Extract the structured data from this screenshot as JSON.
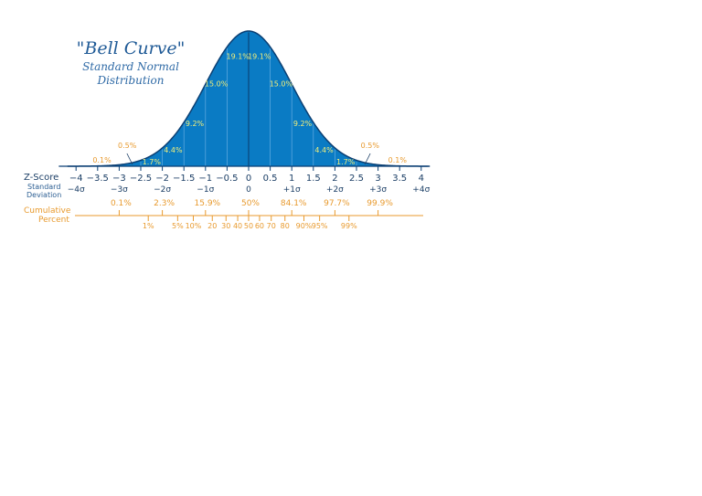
{
  "chart_data": {
    "type": "area",
    "title": "\"Bell Curve\"",
    "subtitle_line1": "Standard Normal",
    "subtitle_line2": "Distribution",
    "x_range": [
      -4.2,
      4.2
    ],
    "curve_color": "#0a7bc4",
    "curve_edge": "#0b3f73",
    "accent_orange": "#e89a2e",
    "area_label_color": "#f2ee7a",
    "zscore": {
      "label": "Z-Score",
      "ticks": [
        -4,
        -3.5,
        -3,
        -2.5,
        -2,
        -1.5,
        -1,
        -0.5,
        0,
        0.5,
        1,
        1.5,
        2,
        2.5,
        3,
        3.5,
        4
      ],
      "tick_labels": [
        "−4",
        "−3.5",
        "−3",
        "−2.5",
        "−2",
        "−1.5",
        "−1",
        "−0.5",
        "0",
        "0.5",
        "1",
        "1.5",
        "2",
        "2.5",
        "3",
        "3.5",
        "4"
      ]
    },
    "std_dev": {
      "label_line1": "Standard",
      "label_line2": "Deviation",
      "points": [
        {
          "z": -4,
          "label": "−4σ"
        },
        {
          "z": -3,
          "label": "−3σ"
        },
        {
          "z": -2,
          "label": "−2σ"
        },
        {
          "z": -1,
          "label": "−1σ"
        },
        {
          "z": 0,
          "label": "0"
        },
        {
          "z": 1,
          "label": "+1σ"
        },
        {
          "z": 2,
          "label": "+2σ"
        },
        {
          "z": 3,
          "label": "+3σ"
        },
        {
          "z": 4,
          "label": "+4σ"
        }
      ]
    },
    "cumulative": {
      "label_line1": "Cumulative",
      "label_line2": "Percent",
      "major": [
        {
          "z": -3,
          "label": "0.1%"
        },
        {
          "z": -2,
          "label": "2.3%"
        },
        {
          "z": -1,
          "label": "15.9%"
        },
        {
          "z": 0,
          "label": "50%"
        },
        {
          "z": 1,
          "label": "84.1%"
        },
        {
          "z": 2,
          "label": "97.7%"
        },
        {
          "z": 3,
          "label": "99.9%"
        }
      ],
      "minor": [
        {
          "z": -2.326,
          "label": "1%"
        },
        {
          "z": -1.645,
          "label": "5%"
        },
        {
          "z": -1.282,
          "label": "10%"
        },
        {
          "z": -0.842,
          "label": "20"
        },
        {
          "z": -0.524,
          "label": "30"
        },
        {
          "z": -0.253,
          "label": "40"
        },
        {
          "z": 0,
          "label": "50"
        },
        {
          "z": 0.253,
          "label": "60"
        },
        {
          "z": 0.524,
          "label": "70"
        },
        {
          "z": 0.842,
          "label": "80"
        },
        {
          "z": 1.282,
          "label": "90%"
        },
        {
          "z": 1.645,
          "label": "95%"
        },
        {
          "z": 2.326,
          "label": "99%"
        }
      ]
    },
    "segments": [
      {
        "from": -3,
        "to": -2.5,
        "value": "0.5%"
      },
      {
        "from": -2.5,
        "to": -2,
        "value": "1.7%"
      },
      {
        "from": -2,
        "to": -1.5,
        "value": "4.4%"
      },
      {
        "from": -1.5,
        "to": -1,
        "value": "9.2%"
      },
      {
        "from": -1,
        "to": -0.5,
        "value": "15.0%"
      },
      {
        "from": -0.5,
        "to": 0,
        "value": "19.1%"
      },
      {
        "from": 0,
        "to": 0.5,
        "value": "19.1%"
      },
      {
        "from": 0.5,
        "to": 1,
        "value": "15.0%"
      },
      {
        "from": 1,
        "to": 1.5,
        "value": "9.2%"
      },
      {
        "from": 1.5,
        "to": 2,
        "value": "4.4%"
      },
      {
        "from": 2,
        "to": 2.5,
        "value": "1.7%"
      },
      {
        "from": 2.5,
        "to": 3,
        "value": "0.5%"
      }
    ],
    "tails": [
      {
        "side": "left",
        "value": "0.1%"
      },
      {
        "side": "right",
        "value": "0.1%"
      }
    ]
  }
}
